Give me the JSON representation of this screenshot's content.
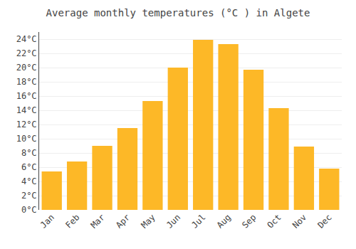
{
  "chart_data": {
    "type": "bar",
    "title": "Average monthly temperatures (°C ) in Algete",
    "categories": [
      "Jan",
      "Feb",
      "Mar",
      "Apr",
      "May",
      "Jun",
      "Jul",
      "Aug",
      "Sep",
      "Oct",
      "Nov",
      "Dec"
    ],
    "values": [
      5.4,
      6.8,
      9.0,
      11.5,
      15.3,
      20.0,
      23.9,
      23.3,
      19.7,
      14.3,
      8.9,
      5.8
    ],
    "color": "#FDB827",
    "ylim": [
      0,
      25
    ],
    "yticks": [
      {
        "value": 0,
        "label": "0°C"
      },
      {
        "value": 2,
        "label": "2°C"
      },
      {
        "value": 4,
        "label": "4°C"
      },
      {
        "value": 6,
        "label": "6°C"
      },
      {
        "value": 8,
        "label": "8°C"
      },
      {
        "value": 10,
        "label": "10°C"
      },
      {
        "value": 12,
        "label": "12°C"
      },
      {
        "value": 14,
        "label": "14°C"
      },
      {
        "value": 16,
        "label": "16°C"
      },
      {
        "value": 18,
        "label": "18°C"
      },
      {
        "value": 20,
        "label": "20°C"
      },
      {
        "value": 22,
        "label": "22°C"
      },
      {
        "value": 24,
        "label": "24°C"
      }
    ],
    "grid": true
  }
}
